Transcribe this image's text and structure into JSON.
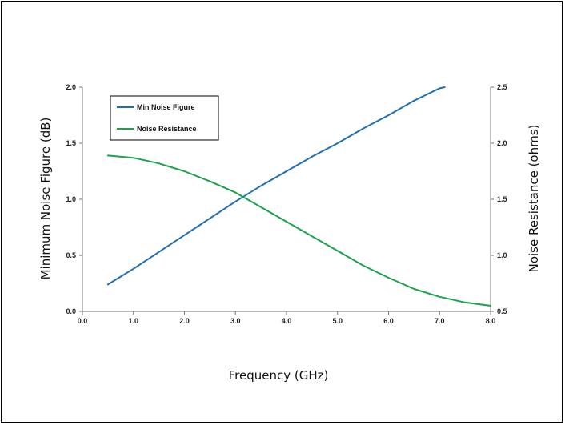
{
  "chart_data": {
    "type": "line",
    "title": "",
    "xlabel": "Frequency (GHz)",
    "ylabel_left": "Minimum Noise Figure (dB)",
    "ylabel_right": "Noise Resistance (ohms)",
    "xlim": [
      0.0,
      8.0
    ],
    "ylim_left": [
      0.0,
      2.0
    ],
    "ylim_right": [
      0.5,
      2.5
    ],
    "x_ticks": [
      "0.0",
      "1.0",
      "2.0",
      "3.0",
      "4.0",
      "5.0",
      "6.0",
      "7.0",
      "8.0"
    ],
    "y_left_ticks": [
      "0.0",
      "0.5",
      "1.0",
      "1.5",
      "2.0"
    ],
    "y_right_ticks": [
      "0.5",
      "1.0",
      "1.5",
      "2.0",
      "2.5"
    ],
    "grid": false,
    "legend_position": "top-left",
    "series": [
      {
        "name": "Min Noise Figure",
        "axis": "left",
        "color": "#1f6fb5",
        "x": [
          0.5,
          1.0,
          1.5,
          2.0,
          2.5,
          3.0,
          3.5,
          4.0,
          4.5,
          5.0,
          5.5,
          6.0,
          6.5,
          7.0,
          7.1
        ],
        "y": [
          0.24,
          0.38,
          0.53,
          0.68,
          0.83,
          0.98,
          1.12,
          1.25,
          1.38,
          1.5,
          1.63,
          1.75,
          1.88,
          1.99,
          2.0
        ]
      },
      {
        "name": "Noise Resistance",
        "axis": "right",
        "color": "#1aa34a",
        "x": [
          0.5,
          1.0,
          1.5,
          2.0,
          2.5,
          3.0,
          3.5,
          4.0,
          4.5,
          5.0,
          5.5,
          6.0,
          6.5,
          7.0,
          7.5,
          8.0
        ],
        "y": [
          1.89,
          1.87,
          1.82,
          1.75,
          1.66,
          1.56,
          1.43,
          1.3,
          1.17,
          1.04,
          0.91,
          0.8,
          0.7,
          0.63,
          0.58,
          0.55
        ]
      }
    ]
  }
}
